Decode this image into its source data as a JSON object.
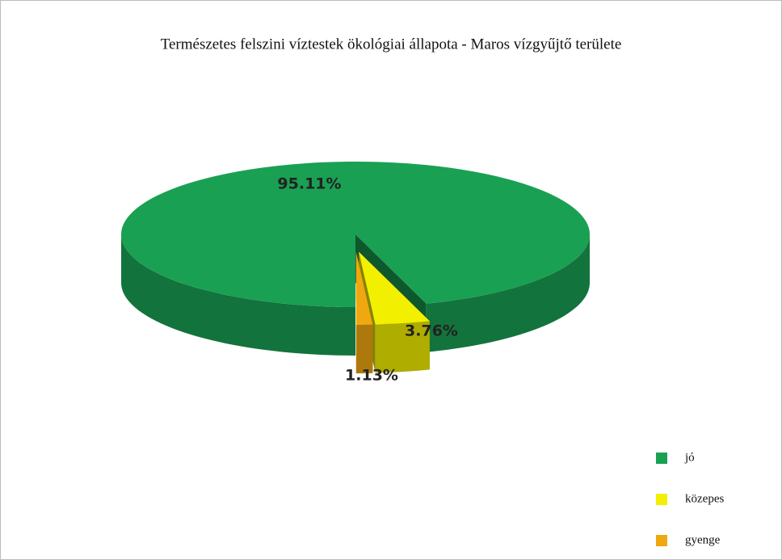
{
  "chart_data": {
    "type": "pie3d",
    "title": "Természetes  felszini víztestek ökológiai állapota - Maros vízgyűjtő területe",
    "categories": [
      "jó",
      "közepes",
      "gyenge"
    ],
    "values": [
      95.11,
      3.76,
      1.13
    ],
    "value_labels": [
      "95.11%",
      "3.76%",
      "1.13%"
    ],
    "colors": [
      "#1aa053",
      "#f2f000",
      "#f0a810"
    ],
    "legend": "bottom-right"
  }
}
